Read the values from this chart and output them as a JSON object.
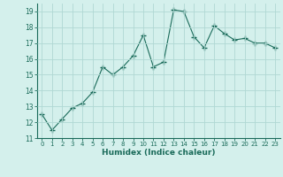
{
  "x": [
    0,
    1,
    2,
    3,
    4,
    5,
    6,
    7,
    8,
    9,
    10,
    11,
    12,
    13,
    14,
    15,
    16,
    17,
    18,
    19,
    20,
    21,
    22,
    23
  ],
  "y": [
    12.5,
    11.5,
    12.2,
    12.9,
    13.2,
    13.9,
    15.5,
    15.0,
    15.5,
    16.2,
    17.5,
    15.5,
    15.8,
    19.1,
    19.0,
    17.4,
    16.7,
    18.1,
    17.6,
    17.2,
    17.3,
    17.0,
    17.0,
    16.7
  ],
  "ylim": [
    11,
    19.5
  ],
  "yticks": [
    11,
    12,
    13,
    14,
    15,
    16,
    17,
    18,
    19
  ],
  "xlim": [
    -0.5,
    23.5
  ],
  "xticks": [
    0,
    1,
    2,
    3,
    4,
    5,
    6,
    7,
    8,
    9,
    10,
    11,
    12,
    13,
    14,
    15,
    16,
    17,
    18,
    19,
    20,
    21,
    22,
    23
  ],
  "xlabel": "Humidex (Indice chaleur)",
  "line_color": "#1a6b5a",
  "bg_color": "#d4f0ec",
  "grid_color": "#b0d8d3",
  "marker": "+",
  "linewidth": 0.8,
  "markersize": 4
}
